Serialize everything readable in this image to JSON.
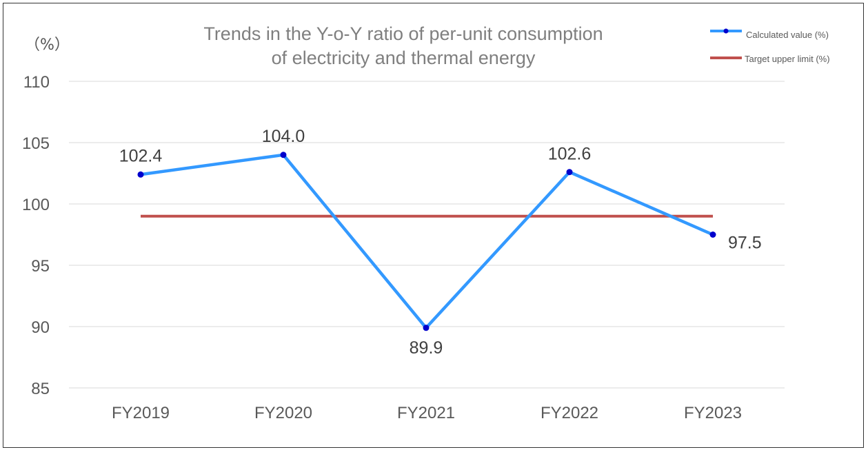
{
  "chart_data": {
    "type": "line",
    "title_lines": [
      "Trends in the Y-o-Y ratio of per-unit consumption",
      "of electricity and thermal energy"
    ],
    "unit_label": "（%）",
    "categories": [
      "FY2019",
      "FY2020",
      "FY2021",
      "FY2022",
      "FY2023"
    ],
    "ylim": [
      85,
      110
    ],
    "yticks": [
      85,
      90,
      95,
      100,
      105,
      110
    ],
    "grid": true,
    "legend_position": "top-right",
    "series": [
      {
        "name": "Calculated value (%)",
        "values": [
          102.4,
          104.0,
          89.9,
          102.6,
          97.5
        ],
        "labels": [
          "102.4",
          "104.0",
          "89.9",
          "102.6",
          "97.5"
        ],
        "color": "#3399ff",
        "marker_color": "#0000cc",
        "markers": true
      },
      {
        "name": "Target upper limit (%)",
        "values": [
          99,
          99,
          99,
          99,
          99
        ],
        "color": "#c0504d",
        "markers": false
      }
    ]
  }
}
